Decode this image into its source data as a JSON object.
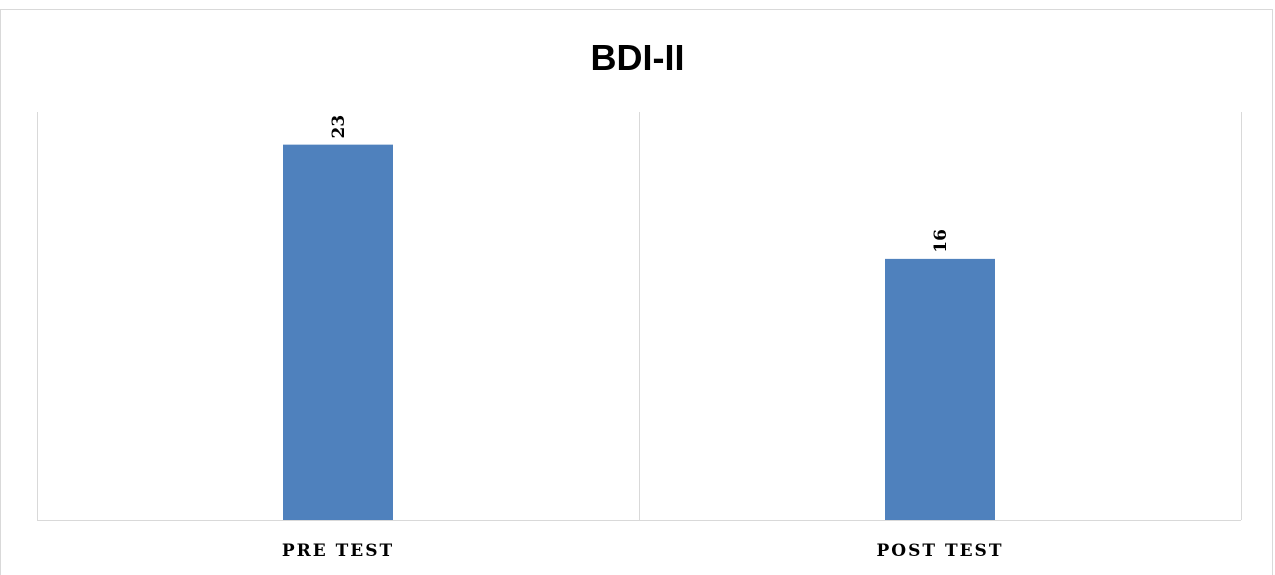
{
  "chart_data": {
    "type": "bar",
    "title": "BDI-II",
    "categories": [
      "PRE TEST",
      "POST TEST"
    ],
    "values": [
      23,
      16
    ],
    "data_labels": [
      "23",
      "16"
    ],
    "ylim": [
      0,
      25
    ],
    "grid": false,
    "legend": "none",
    "colors": {
      "bar": "#4f81bd",
      "axis": "#d9d9d9",
      "divider": "#d9d9d9"
    }
  }
}
